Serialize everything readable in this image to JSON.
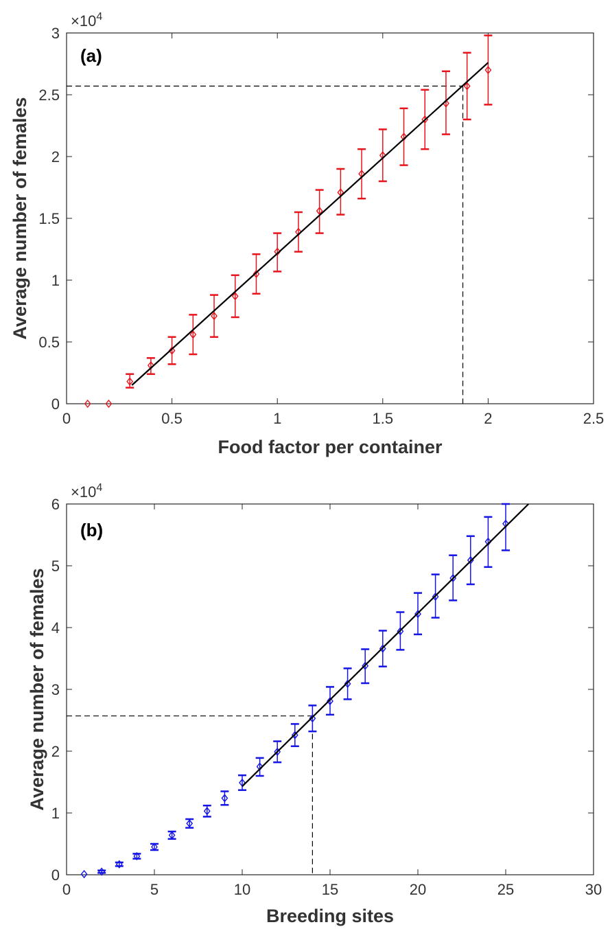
{
  "chart_data": [
    {
      "type": "scatter",
      "panel_label": "(a)",
      "xlabel": "Food factor per container",
      "ylabel": "Average number of females",
      "y_exponent_label": "×10",
      "y_exponent_power": "4",
      "xlim": [
        0,
        2.5
      ],
      "ylim": [
        0,
        3
      ],
      "xticks": [
        0,
        0.5,
        1,
        1.5,
        2,
        2.5
      ],
      "xtick_labels": [
        "0",
        "0.5",
        "1",
        "1.5",
        "2",
        "2.5"
      ],
      "yticks": [
        0,
        0.5,
        1,
        1.5,
        2,
        2.5,
        3
      ],
      "ytick_labels": [
        "0",
        "0.5",
        "1",
        "1.5",
        "2",
        "2.5",
        "3"
      ],
      "grid": false,
      "color": "#e8141c",
      "series": [
        {
          "x": [
            0.1,
            0.2,
            0.3,
            0.4,
            0.5,
            0.6,
            0.7,
            0.8,
            0.9,
            1.0,
            1.1,
            1.2,
            1.3,
            1.4,
            1.5,
            1.6,
            1.7,
            1.8,
            1.9,
            2.0
          ],
          "y": [
            0,
            0,
            0.18,
            0.31,
            0.43,
            0.56,
            0.71,
            0.87,
            1.05,
            1.23,
            1.39,
            1.56,
            1.71,
            1.86,
            2.01,
            2.16,
            2.3,
            2.43,
            2.57,
            2.7
          ],
          "err_low": [
            0,
            0,
            0.13,
            0.24,
            0.32,
            0.4,
            0.54,
            0.7,
            0.89,
            1.07,
            1.23,
            1.38,
            1.53,
            1.66,
            1.8,
            1.93,
            2.06,
            2.18,
            2.3,
            2.42
          ],
          "err_high": [
            0,
            0,
            0.24,
            0.37,
            0.54,
            0.72,
            0.88,
            1.04,
            1.21,
            1.38,
            1.55,
            1.73,
            1.9,
            2.06,
            2.22,
            2.39,
            2.54,
            2.69,
            2.84,
            2.98
          ]
        }
      ],
      "fit_line": {
        "x": [
          0.31,
          2.0
        ],
        "y": [
          0.15,
          2.76
        ]
      },
      "reference_lines": {
        "x": 1.88,
        "y": 2.57
      }
    },
    {
      "type": "scatter",
      "panel_label": "(b)",
      "xlabel": "Breeding sites",
      "ylabel": "Average number of females",
      "y_exponent_label": "×10",
      "y_exponent_power": "4",
      "xlim": [
        0,
        30
      ],
      "ylim": [
        0,
        6
      ],
      "xticks": [
        0,
        5,
        10,
        15,
        20,
        25,
        30
      ],
      "xtick_labels": [
        "0",
        "5",
        "10",
        "15",
        "20",
        "25",
        "30"
      ],
      "yticks": [
        0,
        1,
        2,
        3,
        4,
        5,
        6
      ],
      "ytick_labels": [
        "0",
        "1",
        "2",
        "3",
        "4",
        "5",
        "6"
      ],
      "grid": false,
      "color": "#1414e6",
      "series": [
        {
          "x": [
            1,
            2,
            3,
            4,
            5,
            6,
            7,
            8,
            9,
            10,
            11,
            12,
            13,
            14,
            15,
            16,
            17,
            18,
            19,
            20,
            21,
            22,
            23,
            24,
            25
          ],
          "y": [
            0.01,
            0.05,
            0.17,
            0.3,
            0.45,
            0.64,
            0.83,
            1.03,
            1.24,
            1.49,
            1.75,
            1.99,
            2.26,
            2.53,
            2.81,
            3.09,
            3.38,
            3.66,
            3.94,
            4.22,
            4.5,
            4.8,
            5.09,
            5.39,
            5.68
          ],
          "err_low": [
            0.01,
            0.03,
            0.14,
            0.26,
            0.4,
            0.58,
            0.76,
            0.94,
            1.13,
            1.37,
            1.6,
            1.82,
            2.08,
            2.32,
            2.59,
            2.84,
            3.1,
            3.37,
            3.64,
            3.89,
            4.16,
            4.44,
            4.7,
            4.98,
            5.25
          ],
          "err_high": [
            0.01,
            0.07,
            0.2,
            0.34,
            0.5,
            0.7,
            0.9,
            1.12,
            1.35,
            1.61,
            1.89,
            2.16,
            2.44,
            2.74,
            3.04,
            3.34,
            3.65,
            3.95,
            4.25,
            4.56,
            4.86,
            5.17,
            5.48,
            5.79,
            6.0
          ]
        }
      ],
      "fit_line": {
        "x": [
          10,
          26.3
        ],
        "y": [
          1.43,
          6.0
        ]
      },
      "reference_lines": {
        "x": 14,
        "y": 2.57
      }
    }
  ]
}
